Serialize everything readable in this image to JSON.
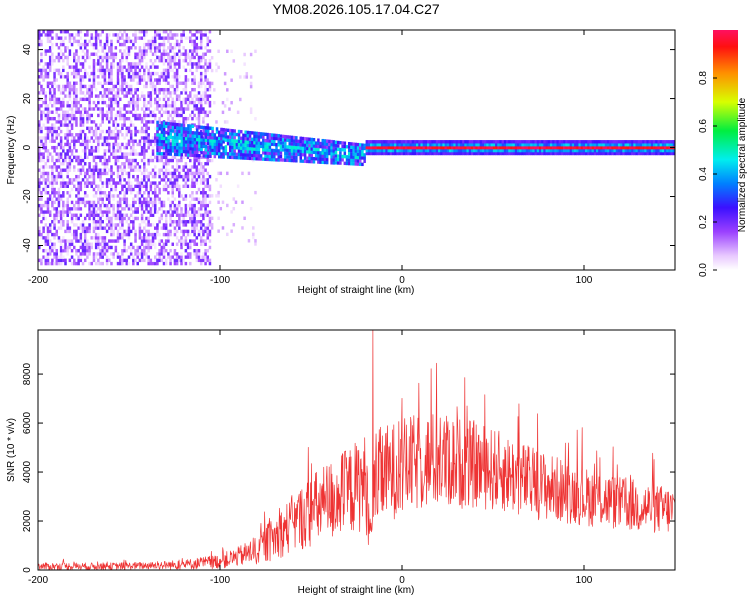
{
  "figure": {
    "title": "YM08.2026.105.17.04.C27"
  },
  "chart_data": [
    {
      "type": "heatmap",
      "title": "YM08.2026.105.17.04.C27",
      "xlabel": "Height of straight line (km)",
      "ylabel": "Frequency (Hz)",
      "xlim": [
        -200,
        150
      ],
      "ylim": [
        -50,
        48
      ],
      "x_ticks": [
        -200,
        -100,
        0,
        100
      ],
      "y_ticks": [
        -40,
        -20,
        0,
        20,
        40
      ],
      "x_tick_labels": [
        "-200",
        "-100",
        "0",
        "100"
      ],
      "y_tick_labels": [
        "-40",
        "-20",
        "0",
        "20",
        "40"
      ],
      "colorbar": {
        "label": "Normalized spectral amplitude",
        "range": [
          0,
          1
        ],
        "ticks": [
          0,
          0.2,
          0.4,
          0.6,
          0.8
        ],
        "tick_labels": [
          "0.0",
          "0.2",
          "0.4",
          "0.6",
          "0.8"
        ],
        "colormap": "rainbow"
      },
      "bands": [
        {
          "x_range": [
            -200,
            -105
          ],
          "freq_center": 0,
          "freq_halfwidth": 48,
          "amplitude_range": [
            0.02,
            0.22
          ],
          "fill": 0.55,
          "pattern": "broadband noise"
        },
        {
          "x_range": [
            -105,
            -80
          ],
          "freq_center": 0,
          "freq_halfwidth": 40,
          "amplitude_range": [
            0.02,
            0.1
          ],
          "fill": 0.07,
          "pattern": "sparse noise"
        },
        {
          "x_range": [
            -135,
            -20
          ],
          "freq_center": 4,
          "freq_center_end": -3,
          "freq_halfwidth": 7,
          "amplitude_range": [
            0.15,
            0.45
          ],
          "fill": 0.9,
          "pattern": "cone signal"
        },
        {
          "x_range": [
            -20,
            150
          ],
          "freq_center": 0,
          "freq_halfwidth": 3,
          "amplitude_range": [
            0.9,
            1.0
          ],
          "fill": 1.0,
          "pattern": "strong line"
        }
      ]
    },
    {
      "type": "line",
      "title": "",
      "xlabel": "Height of straight line (km)",
      "ylabel": "SNR (10 * v/v)",
      "xlim": [
        -200,
        150
      ],
      "ylim": [
        0,
        9800
      ],
      "x_ticks": [
        -200,
        -100,
        0,
        100
      ],
      "y_ticks": [
        0,
        2000,
        4000,
        6000,
        8000
      ],
      "x_tick_labels": [
        "-200",
        "-100",
        "0",
        "100"
      ],
      "y_tick_labels": [
        "0",
        "2000",
        "4000",
        "6000",
        "8000"
      ],
      "series": [
        {
          "name": "SNR",
          "color": "#ee3333",
          "envelope": {
            "x": [
              -200,
              -160,
              -140,
              -120,
              -100,
              -90,
              -80,
              -70,
              -60,
              -50,
              -40,
              -30,
              -20,
              -17,
              -15,
              -10,
              0,
              10,
              20,
              30,
              40,
              50,
              60,
              70,
              80,
              90,
              100,
              110,
              120,
              130,
              140,
              150
            ],
            "mean": [
              150,
              150,
              180,
              220,
              350,
              550,
              800,
              1300,
              1900,
              2400,
              2800,
              3200,
              3600,
              1200,
              3700,
              3900,
              4200,
              4400,
              4500,
              4400,
              4300,
              4100,
              3900,
              3600,
              3400,
              3200,
              3000,
              2900,
              2700,
              2600,
              2500,
              2400
            ],
            "spread": [
              150,
              150,
              150,
              200,
              300,
              400,
              600,
              900,
              1200,
              1500,
              1700,
              1800,
              2000,
              800,
              2000,
              2000,
              2000,
              2000,
              2000,
              1900,
              1800,
              1700,
              1600,
              1500,
              1400,
              1300,
              1200,
              1200,
              1100,
              1100,
              1000,
              1000
            ]
          },
          "peak": {
            "x": -16,
            "y": 9800
          }
        }
      ]
    }
  ]
}
